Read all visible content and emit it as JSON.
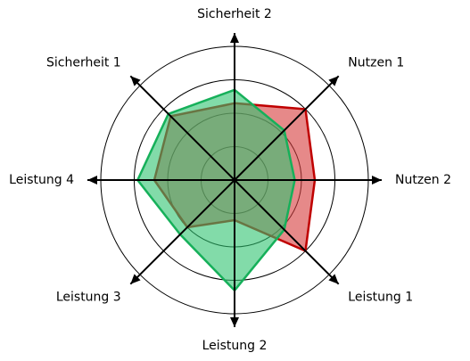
{
  "chart_data": {
    "type": "radar",
    "axes": [
      "Sicherheit 2",
      "Nutzen 1",
      "Nutzen 2",
      "Leistung 1",
      "Leistung 2",
      "Leistung 3",
      "Leistung 4",
      "Sicherheit 1"
    ],
    "rlim": [
      0,
      4
    ],
    "grid_rings": [
      1,
      2,
      3,
      4
    ],
    "grid": true,
    "series": [
      {
        "values": [
          2.3,
          3.0,
          2.4,
          3.0,
          1.2,
          2.0,
          2.4,
          2.7
        ],
        "fill": "#d63a3a",
        "stroke": "#c00000",
        "fill_opacity": 0.6
      },
      {
        "values": [
          2.7,
          2.1,
          1.8,
          2.1,
          3.3,
          2.3,
          2.9,
          2.8
        ],
        "fill": "#2fc36f",
        "stroke": "#16b05a",
        "fill_opacity": 0.6
      }
    ],
    "colors": {
      "grid": "#000000",
      "spoke": "#000000"
    }
  }
}
